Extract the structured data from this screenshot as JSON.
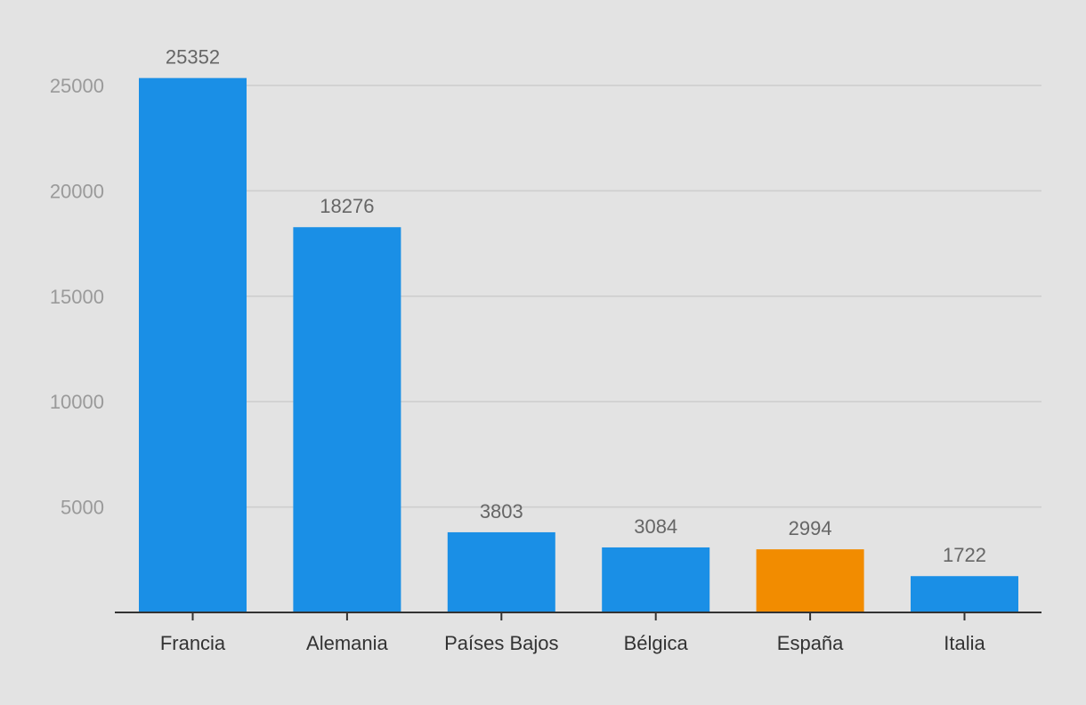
{
  "chart_data": {
    "type": "bar",
    "title": "",
    "xlabel": "",
    "ylabel": "",
    "categories": [
      "Francia",
      "Alemania",
      "Países Bajos",
      "Bélgica",
      "España",
      "Italia"
    ],
    "values": [
      25352,
      18276,
      3803,
      3084,
      2994,
      1722
    ],
    "data_labels": [
      "25352",
      "18276",
      "3803",
      "3084",
      "2994",
      "1722"
    ],
    "ylim": [
      0,
      25000
    ],
    "yticks": [
      5000,
      10000,
      15000,
      20000,
      25000
    ],
    "ytick_labels": [
      "5000",
      "10000",
      "15000",
      "20000",
      "25000"
    ],
    "grid": true,
    "legend": "none",
    "colors": {
      "default": "#1a8fe6",
      "highlight": "#f28c00",
      "highlight_category": "España",
      "background": "#e3e3e3",
      "gridline": "#cdcdcd",
      "axis": "#333333"
    }
  }
}
